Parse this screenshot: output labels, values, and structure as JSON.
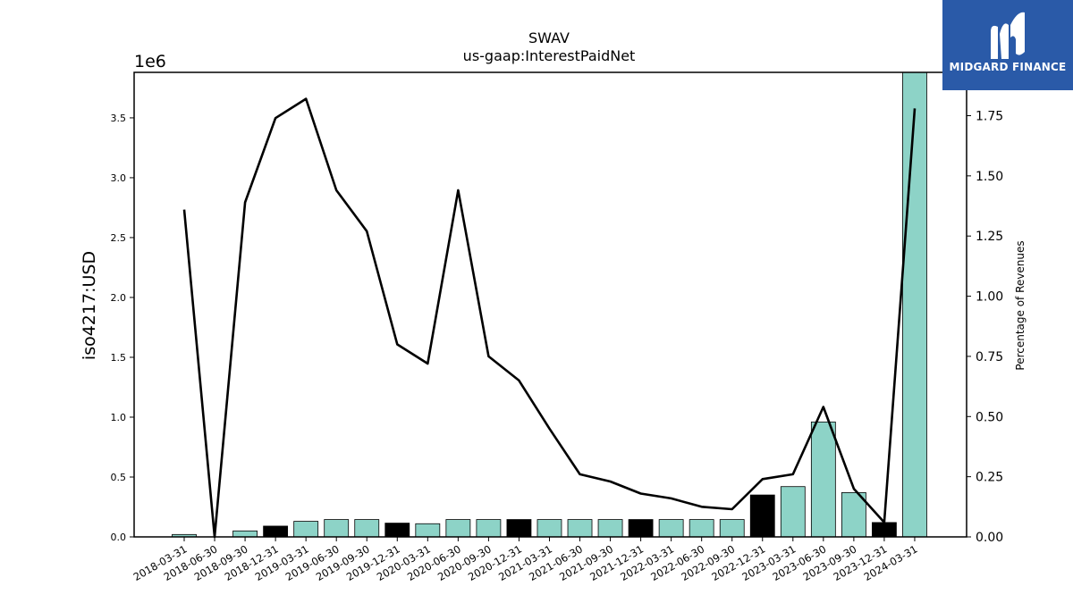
{
  "chart_data": {
    "type": "bar",
    "title": "SWAV",
    "subtitle": "us-gaap:InterestPaidNet",
    "ylabel": "iso4217:USD",
    "y2label": "Percentage of Revenues",
    "offset_label": "1e6",
    "ylim": [
      0,
      3.88
    ],
    "y2lim": [
      0,
      1.93
    ],
    "yticks": [
      "0.0",
      "0.5",
      "1.0",
      "1.5",
      "2.0",
      "2.5",
      "3.0",
      "3.5"
    ],
    "y2ticks": [
      "0.00",
      "0.25",
      "0.50",
      "0.75",
      "1.00",
      "1.25",
      "1.50",
      "1.75"
    ],
    "categories": [
      "2018-03-31",
      "2018-06-30",
      "2018-09-30",
      "2018-12-31",
      "2019-03-31",
      "2019-06-30",
      "2019-09-30",
      "2019-12-31",
      "2020-03-31",
      "2020-06-30",
      "2020-09-30",
      "2020-12-31",
      "2021-03-31",
      "2021-06-30",
      "2021-09-30",
      "2021-12-31",
      "2022-03-31",
      "2022-06-30",
      "2022-09-30",
      "2022-12-31",
      "2023-03-31",
      "2023-06-30",
      "2023-09-30",
      "2023-12-31",
      "2024-03-31"
    ],
    "series": [
      {
        "type": "bar",
        "values": [
          0.02,
          0.0,
          0.05,
          0.09,
          0.13,
          0.145,
          0.145,
          0.115,
          0.11,
          0.145,
          0.145,
          0.145,
          0.145,
          0.145,
          0.145,
          0.145,
          0.145,
          0.145,
          0.145,
          0.35,
          0.42,
          0.96,
          0.37,
          0.12,
          3.88
        ],
        "colors": [
          "#8dd3c7",
          "#8dd3c7",
          "#8dd3c7",
          "#000000",
          "#8dd3c7",
          "#8dd3c7",
          "#8dd3c7",
          "#000000",
          "#8dd3c7",
          "#8dd3c7",
          "#8dd3c7",
          "#000000",
          "#8dd3c7",
          "#8dd3c7",
          "#8dd3c7",
          "#000000",
          "#8dd3c7",
          "#8dd3c7",
          "#8dd3c7",
          "#000000",
          "#8dd3c7",
          "#8dd3c7",
          "#8dd3c7",
          "#000000",
          "#8dd3c7"
        ]
      },
      {
        "type": "line",
        "axis": "right",
        "values": [
          1.36,
          0.0,
          1.39,
          1.74,
          1.82,
          1.44,
          1.27,
          0.8,
          0.72,
          1.44,
          0.75,
          0.65,
          0.45,
          0.26,
          0.23,
          0.18,
          0.16,
          0.125,
          0.115,
          0.24,
          0.26,
          0.54,
          0.2,
          0.06,
          1.78
        ],
        "color": "#000000"
      }
    ],
    "grid": false
  },
  "logo": {
    "text": "MIDGARD FINANCE",
    "bg": "#2a5aa8"
  }
}
